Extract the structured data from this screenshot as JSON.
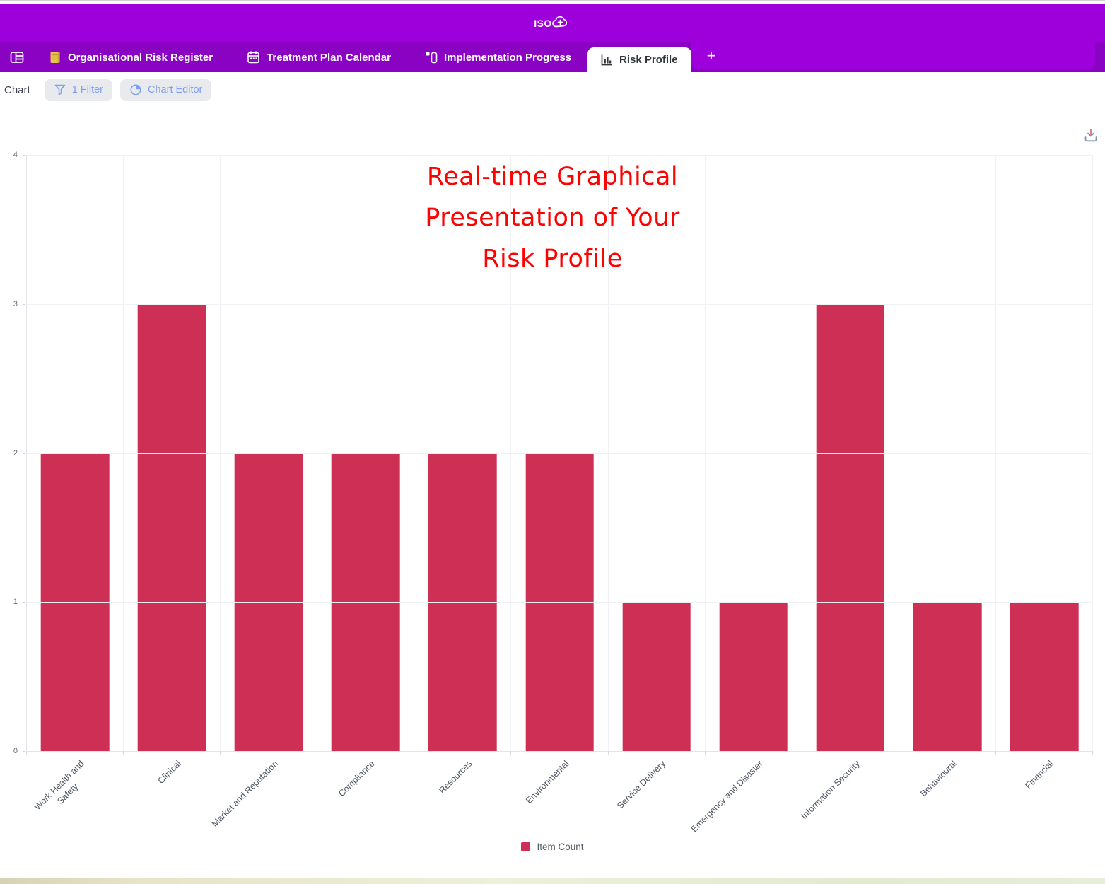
{
  "header": {
    "logo_text": "ISO",
    "logo_icon": "cloud-plus-icon",
    "background_color": "#9d00da"
  },
  "tab_bar": {
    "background_color": "#8a02c2",
    "tabs": [
      {
        "label": "Organisational Risk Register",
        "icon": "document-icon",
        "active": false
      },
      {
        "label": "Treatment Plan Calendar",
        "icon": "calendar-icon",
        "active": false
      },
      {
        "label": "Implementation Progress",
        "icon": "kanban-icon",
        "active": false
      },
      {
        "label": "Risk Profile",
        "icon": "bar-chart-icon",
        "active": true
      }
    ],
    "add_tab_label": "+"
  },
  "toolbar": {
    "view_label": "Chart",
    "filter_button_label": "1 Filter",
    "chart_editor_button_label": "Chart Editor",
    "accent_color": "#7d9ff3"
  },
  "annotation": {
    "lines": [
      "Real-time Graphical",
      "Presentation of Your",
      "Risk Profile"
    ],
    "color": "#fe0202"
  },
  "chart_data": {
    "type": "bar",
    "title": "",
    "categories": [
      "Work Health and Safety",
      "Clinical",
      "Market and Reputation",
      "Compliance",
      "Resources",
      "Environmental",
      "Service Delivery",
      "Emergency and Disaster",
      "Information Security",
      "Behavioural",
      "Financial"
    ],
    "category_display": [
      "Work Health and\nSafety",
      "Clinical",
      "Market and Reputation",
      "Compliance",
      "Resources",
      "Environmental",
      "Service Delivery",
      "Emergency and Disaster",
      "Information Security",
      "Behavioural",
      "Financial"
    ],
    "values": [
      2,
      3,
      2,
      2,
      2,
      2,
      1,
      1,
      3,
      1,
      1
    ],
    "series_name": "Item Count",
    "xlabel": "",
    "ylabel": "",
    "ylim": [
      0,
      4
    ],
    "yticks": [
      0,
      1,
      2,
      3,
      4
    ],
    "bar_color": "#cd3054",
    "grid": true,
    "legend_position": "bottom",
    "xlabel_rotation_deg": 45
  }
}
